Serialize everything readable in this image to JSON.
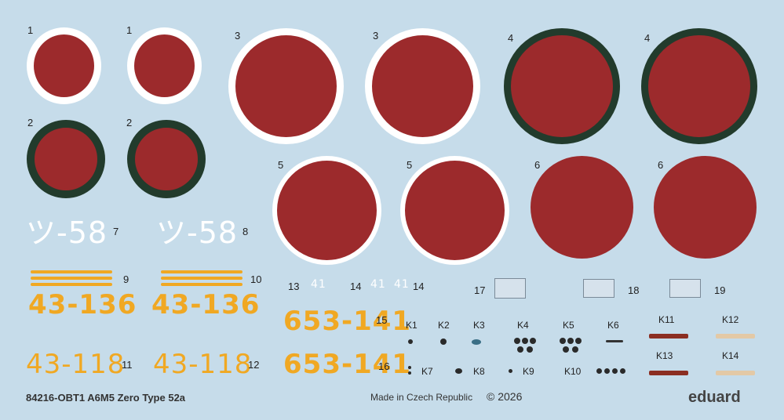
{
  "sheet": {
    "title": "84216-OBT1 A6M5 Zero Type 52a",
    "made_in": "Made in Czech Republic",
    "copyright": "© 2026",
    "brand": "eduard"
  },
  "colors": {
    "background": "#c6dcea",
    "hinomaru_red": "#9c2a2c",
    "outline_white": "#ffffff",
    "outline_green": "#223b2c",
    "code_white": "#ffffff",
    "code_yellow": "#f0a823"
  },
  "decal_numbers": {
    "n1a": "1",
    "n1b": "1",
    "n2a": "2",
    "n2b": "2",
    "n3a": "3",
    "n3b": "3",
    "n4a": "4",
    "n4b": "4",
    "n5a": "5",
    "n5b": "5",
    "n6a": "6",
    "n6b": "6",
    "n7": "7",
    "n8": "8",
    "n9": "9",
    "n10": "10",
    "n11": "11",
    "n12": "12",
    "n13": "13",
    "n14a": "14",
    "n14b": "14",
    "n15": "15",
    "n16": "16",
    "n17": "17",
    "n18": "18",
    "n19": "19"
  },
  "codes": {
    "c7": "ツ-58",
    "c8": "ツ-58",
    "c9": "43-136",
    "c10": "43-136",
    "c11": "43-118",
    "c12": "43-118",
    "c13": "41",
    "c14a": "41",
    "c14b": "41",
    "c15": "653-141",
    "c16": "653-141"
  },
  "k_labels": {
    "k1": "K1",
    "k2": "K2",
    "k3": "K3",
    "k4": "K4",
    "k5": "K5",
    "k6": "K6",
    "k7": "K7",
    "k8": "K8",
    "k9": "K9",
    "k10": "K10",
    "k11": "K11",
    "k12": "K12",
    "k13": "K13",
    "k14": "K14"
  }
}
